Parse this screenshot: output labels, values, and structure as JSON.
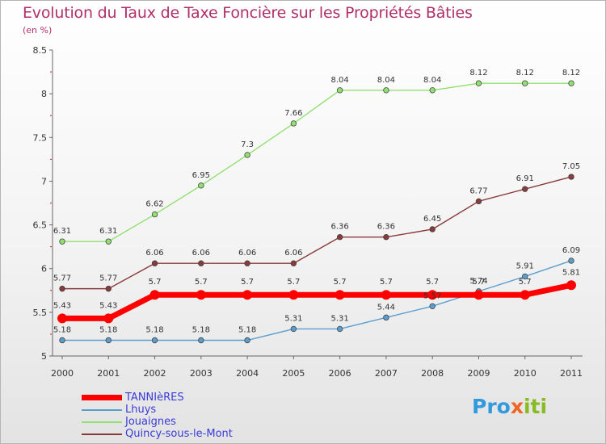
{
  "chart_data": {
    "type": "line",
    "title": "Evolution du Taux de Taxe Foncière sur les Propriétés Bâties",
    "subtitle": "(en %)",
    "xlabel": "",
    "ylabel": "",
    "categories": [
      "2000",
      "2001",
      "2002",
      "2003",
      "2004",
      "2005",
      "2006",
      "2007",
      "2008",
      "2009",
      "2010",
      "2011"
    ],
    "ylim": [
      5,
      8.5
    ],
    "yticks": [
      "5",
      "5.5",
      "6",
      "6.5",
      "7",
      "7.5",
      "8",
      "8.5"
    ],
    "ytick_values": [
      5,
      5.5,
      6,
      6.5,
      7,
      7.5,
      8,
      8.5
    ],
    "grid": false,
    "legend_position": "bottom-left",
    "series": [
      {
        "name": "TANNIèRES",
        "color": "#ff0000",
        "values": [
          5.43,
          5.43,
          5.7,
          5.7,
          5.7,
          5.7,
          5.7,
          5.7,
          5.7,
          5.7,
          5.7,
          5.81
        ],
        "labels": [
          "5.43",
          "5.43",
          "5.7",
          "5.7",
          "5.7",
          "5.7",
          "5.7",
          "5.7",
          "5.7",
          "5.7",
          "5.7",
          "5.81"
        ]
      },
      {
        "name": "Lhuys",
        "color": "#5a9ed0",
        "values": [
          5.18,
          5.18,
          5.18,
          5.18,
          5.18,
          5.31,
          5.31,
          5.44,
          5.57,
          5.74,
          5.91,
          6.09
        ],
        "labels": [
          "5.18",
          "5.18",
          "5.18",
          "5.18",
          "5.18",
          "5.31",
          "5.31",
          "5.44",
          "5.57",
          "5.74",
          "5.91",
          "6.09"
        ]
      },
      {
        "name": "Jouaignes",
        "color": "#90e070",
        "values": [
          6.31,
          6.31,
          6.62,
          6.95,
          7.3,
          7.66,
          8.04,
          8.04,
          8.04,
          8.12,
          8.12,
          8.12
        ],
        "labels": [
          "6.31",
          "6.31",
          "6.62",
          "6.95",
          "7.3",
          "7.66",
          "8.04",
          "8.04",
          "8.04",
          "8.12",
          "8.12",
          "8.12"
        ]
      },
      {
        "name": "Quincy-sous-le-Mont",
        "color": "#8a3a3a",
        "values": [
          5.77,
          5.77,
          6.06,
          6.06,
          6.06,
          6.06,
          6.36,
          6.36,
          6.45,
          6.77,
          6.91,
          7.05
        ],
        "labels": [
          "5.77",
          "5.77",
          "6.06",
          "6.06",
          "6.06",
          "6.06",
          "6.36",
          "6.36",
          "6.45",
          "6.77",
          "6.91",
          "7.05"
        ]
      }
    ]
  },
  "logo": {
    "parts": [
      "Pro",
      "x",
      "iti"
    ],
    "colors": [
      "#3399dd",
      "#ee6622",
      "#88bb22"
    ]
  }
}
